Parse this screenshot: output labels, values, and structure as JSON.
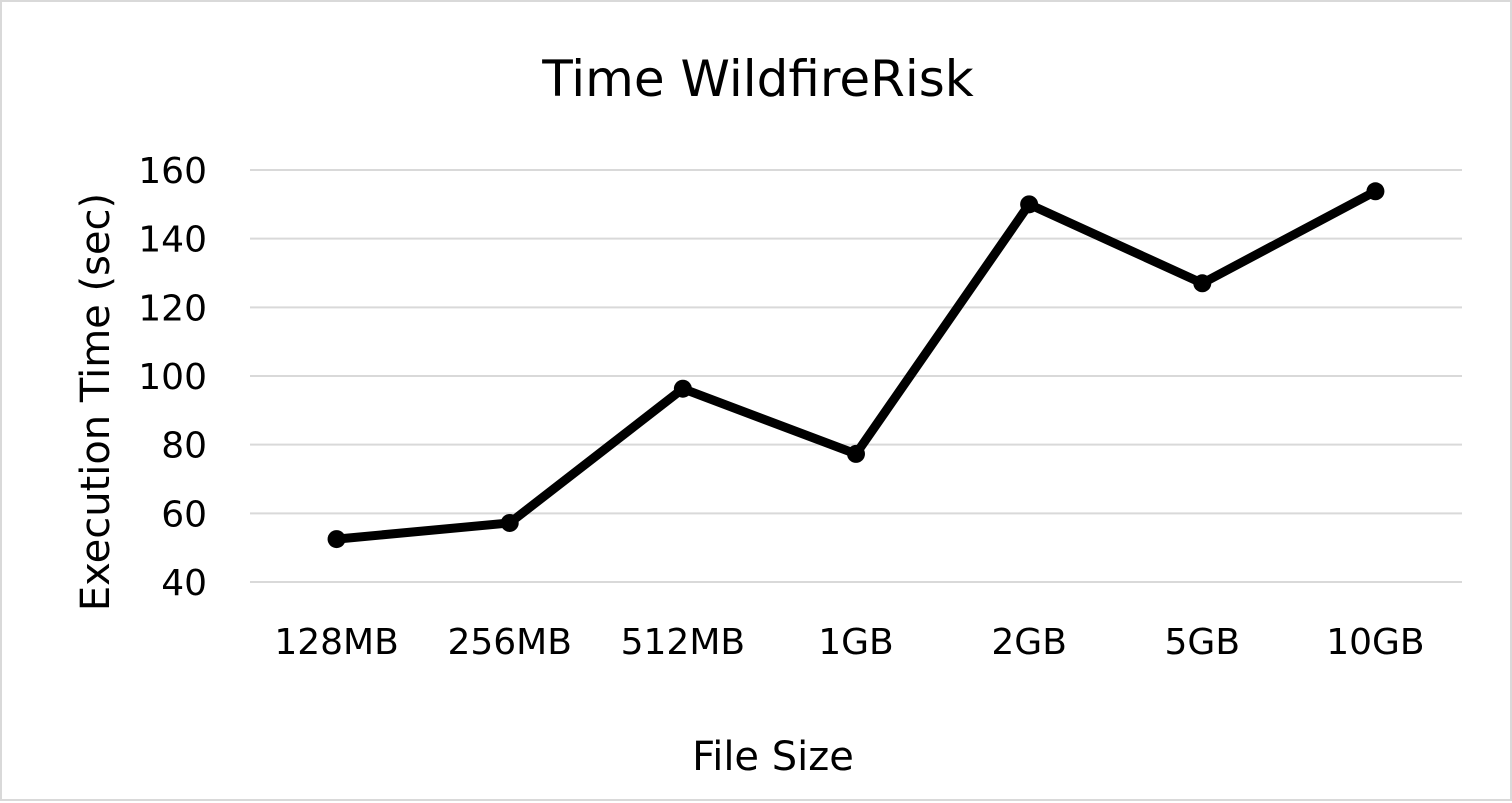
{
  "chart_data": {
    "type": "line",
    "title": "Time WildfireRisk",
    "xlabel": "File Size",
    "ylabel": "Execution Time (sec)",
    "categories": [
      "128MB",
      "256MB",
      "512MB",
      "1GB",
      "2GB",
      "5GB",
      "10GB"
    ],
    "series": [
      {
        "values": [
          52.5,
          57.2,
          96.3,
          77.3,
          150.0,
          127.0,
          153.8
        ],
        "color": "#000000"
      }
    ],
    "ylim": [
      40,
      160
    ],
    "yticks": [
      40,
      60,
      80,
      100,
      120,
      140,
      160
    ],
    "grid": true,
    "legend": "none"
  }
}
